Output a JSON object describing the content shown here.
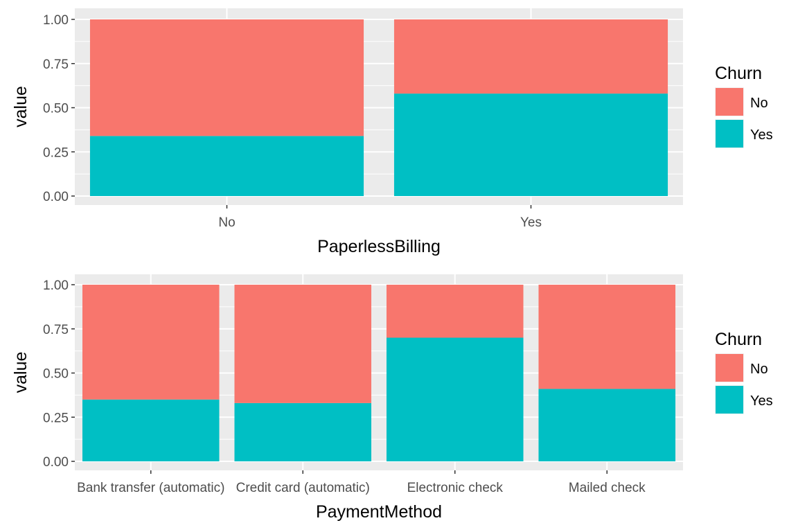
{
  "chart_data": [
    {
      "type": "bar",
      "stacked": true,
      "xlabel": "PaperlessBilling",
      "ylabel": "value",
      "categories": [
        "No",
        "Yes"
      ],
      "series": [
        {
          "name": "No",
          "values": [
            0.66,
            0.42
          ]
        },
        {
          "name": "Yes",
          "values": [
            0.34,
            0.58
          ]
        }
      ],
      "ylim": [
        0,
        1
      ],
      "yticks": [
        "0.00",
        "0.25",
        "0.50",
        "0.75",
        "1.00"
      ],
      "legend": {
        "title": "Churn",
        "placement": "right"
      },
      "grid": true
    },
    {
      "type": "bar",
      "stacked": true,
      "xlabel": "PaymentMethod",
      "ylabel": "value",
      "categories": [
        "Bank transfer (automatic)",
        "Credit card (automatic)",
        "Electronic check",
        "Mailed check"
      ],
      "series": [
        {
          "name": "No",
          "values": [
            0.65,
            0.67,
            0.3,
            0.59
          ]
        },
        {
          "name": "Yes",
          "values": [
            0.35,
            0.33,
            0.7,
            0.41
          ]
        }
      ],
      "ylim": [
        0,
        1
      ],
      "yticks": [
        "0.00",
        "0.25",
        "0.50",
        "0.75",
        "1.00"
      ],
      "legend": {
        "title": "Churn",
        "placement": "right"
      },
      "grid": true
    }
  ],
  "colors": {
    "No": "#F8766D",
    "Yes": "#00BFC4",
    "panel_bg": "#EBEBEB",
    "grid": "#FFFFFF"
  }
}
